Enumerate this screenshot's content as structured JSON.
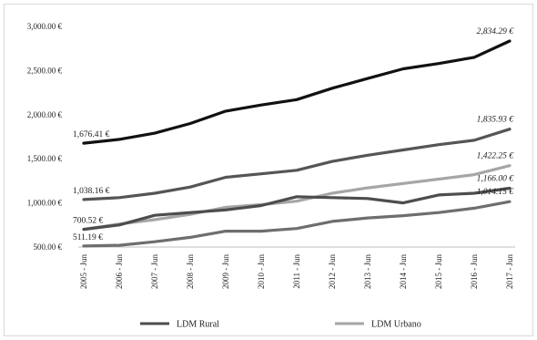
{
  "chart_data": {
    "type": "line",
    "title": "",
    "xlabel": "",
    "ylabel": "",
    "categories": [
      "2005 - Jun",
      "2006 - Jun",
      "2007 - Jun",
      "2008 - Jun",
      "2009 - Jun",
      "2010 - Jun",
      "2011 - Jun",
      "2012 - Jun",
      "2013 - Jun",
      "2014 - Jun",
      "2015 - Jun",
      "2016 - Jun",
      "2017 - Jun"
    ],
    "ylim": [
      500,
      3000
    ],
    "y_ticks": [
      {
        "value": 500,
        "label": "500.00 €"
      },
      {
        "value": 1000,
        "label": "1,000.00 €"
      },
      {
        "value": 1500,
        "label": "1,500.00 €"
      },
      {
        "value": 2000,
        "label": "2,000.00 €"
      },
      {
        "value": 2500,
        "label": "2,500.00 €"
      },
      {
        "value": 3000,
        "label": "3,000.00 €"
      }
    ],
    "grid": false,
    "legend_position": "bottom",
    "series": [
      {
        "key": "s1",
        "color": "#111111",
        "width": 3.2,
        "values": [
          1676.41,
          1720,
          1790,
          1900,
          2040,
          2110,
          2170,
          2300,
          2410,
          2520,
          2580,
          2650,
          2834.29
        ]
      },
      {
        "key": "s2",
        "color": "#555555",
        "width": 3.2,
        "values": [
          1038.16,
          1060,
          1110,
          1180,
          1290,
          1330,
          1370,
          1470,
          1540,
          1600,
          1660,
          1710,
          1835.93
        ]
      },
      {
        "key": "s3",
        "name": "LDM Urbano",
        "color": "#a6a6a6",
        "width": 3.2,
        "values": [
          700.52,
          760,
          810,
          870,
          950,
          980,
          1020,
          1110,
          1170,
          1220,
          1270,
          1320,
          1422.25
        ]
      },
      {
        "key": "s4",
        "name": "LDM Rural",
        "color": "#4d4d4d",
        "width": 3.2,
        "values": [
          700,
          750,
          860,
          890,
          920,
          970,
          1070,
          1060,
          1050,
          1000,
          1090,
          1110,
          1166.0
        ]
      },
      {
        "key": "s5",
        "color": "#6e6e6e",
        "width": 3.2,
        "values": [
          511.19,
          520,
          560,
          610,
          680,
          680,
          710,
          790,
          830,
          855,
          890,
          940,
          1014.15
        ]
      }
    ],
    "data_labels": [
      {
        "series": "s1",
        "index": 0,
        "text": "1,676.41 €"
      },
      {
        "series": "s1",
        "index": 12,
        "text": "2,834.29 €"
      },
      {
        "series": "s2",
        "index": 0,
        "text": "1,038.16 €"
      },
      {
        "series": "s2",
        "index": 12,
        "text": "1,835.93 €"
      },
      {
        "series": "s3",
        "index": 0,
        "text": "700.52 €"
      },
      {
        "series": "s3",
        "index": 12,
        "text": "1,422.25 €"
      },
      {
        "series": "s4",
        "index": 12,
        "text": "1,166.00 €"
      },
      {
        "series": "s5",
        "index": 0,
        "text": "511.19 €"
      },
      {
        "series": "s5",
        "index": 12,
        "text": "1,014.15 €"
      }
    ],
    "legend": [
      {
        "series": "s4",
        "label": "LDM Rural"
      },
      {
        "series": "s3",
        "label": "LDM Urbano"
      }
    ]
  }
}
